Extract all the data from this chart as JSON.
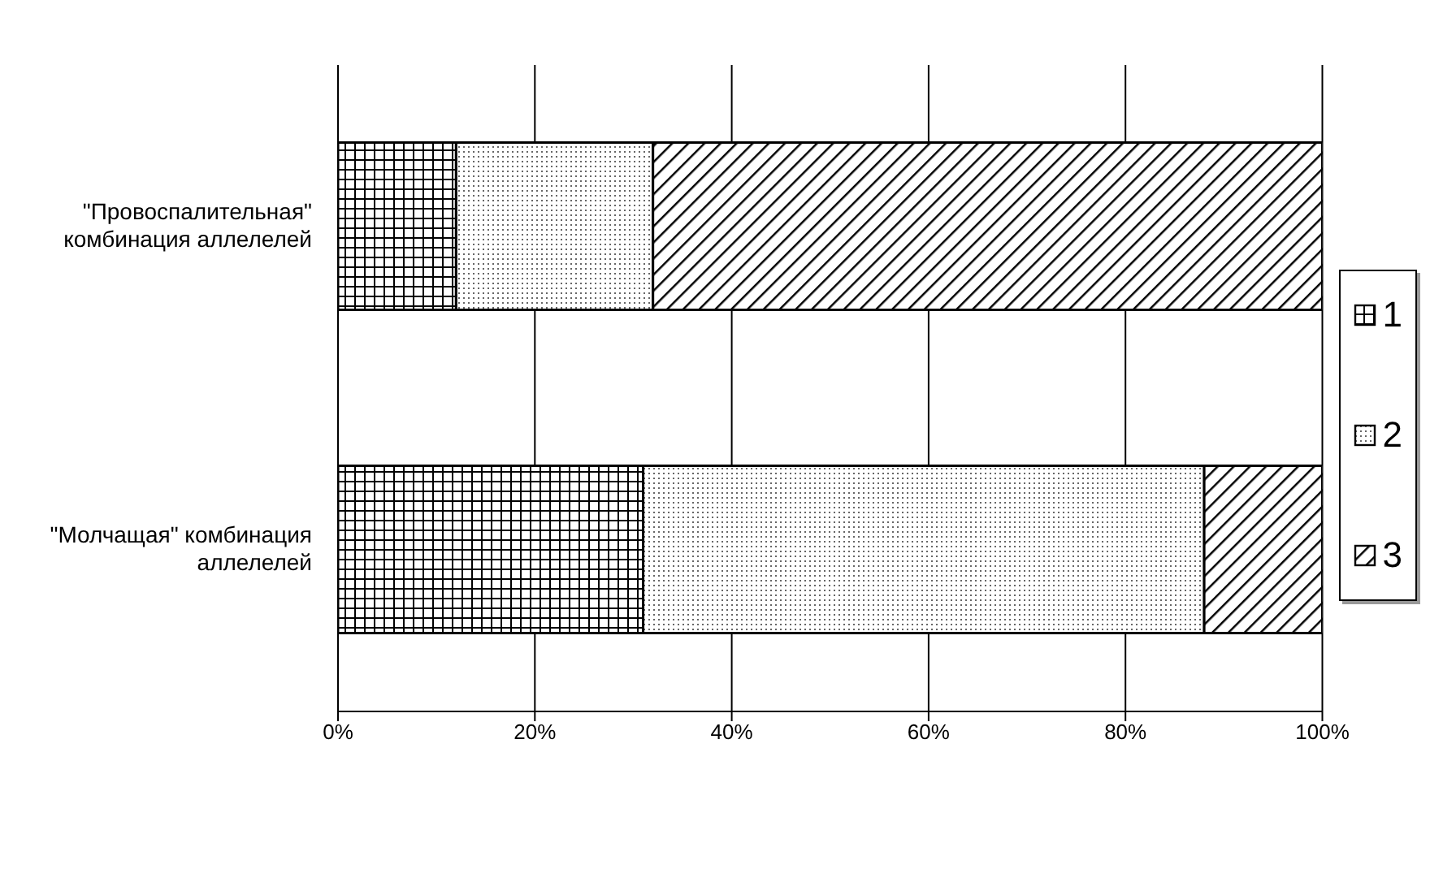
{
  "chart_data": {
    "type": "bar",
    "orientation": "horizontal",
    "stacked": true,
    "categories": [
      "\"Провоспалительная\" комбинация аллелелей",
      "\"Молчащая\" комбинация аллелелей"
    ],
    "series": [
      {
        "name": "1",
        "color": "#000000",
        "values": [
          12,
          31
        ]
      },
      {
        "name": "2",
        "color": "#000000",
        "values": [
          20,
          57
        ]
      },
      {
        "name": "3",
        "color": "#000000",
        "values": [
          68,
          12
        ]
      }
    ],
    "xlim": [
      0,
      100
    ],
    "xticks": [
      {
        "value": 0,
        "label": "0%"
      },
      {
        "value": 20,
        "label": "20%"
      },
      {
        "value": 40,
        "label": "40%"
      },
      {
        "value": 60,
        "label": "60%"
      },
      {
        "value": 80,
        "label": "80%"
      },
      {
        "value": 100,
        "label": "100%"
      }
    ],
    "grid": "x",
    "legend": "right"
  }
}
